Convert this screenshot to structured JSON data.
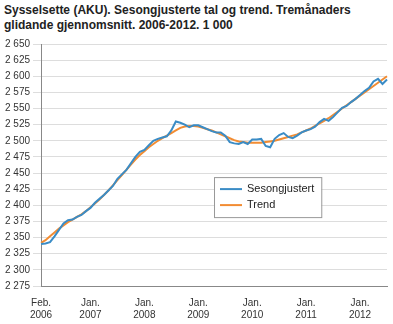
{
  "chart_data": {
    "type": "line",
    "title": "Sysselsette (AKU).  Sesongjusterte tal og trend. Tremånaders glidande gjennomsnitt. 2006-2012. 1 000",
    "categories": [
      "Feb. 2006",
      null,
      null,
      null,
      null,
      null,
      null,
      null,
      null,
      null,
      null,
      "Jan. 2007",
      null,
      null,
      null,
      null,
      null,
      null,
      null,
      null,
      null,
      null,
      null,
      "Jan. 2008",
      null,
      null,
      null,
      null,
      null,
      null,
      null,
      null,
      null,
      null,
      null,
      "Jan. 2009",
      null,
      null,
      null,
      null,
      null,
      null,
      null,
      null,
      null,
      null,
      null,
      "Jan. 2010",
      null,
      null,
      null,
      null,
      null,
      null,
      null,
      null,
      null,
      null,
      null,
      "Jan. 2011",
      null,
      null,
      null,
      null,
      null,
      null,
      null,
      null,
      null,
      null,
      null,
      "Jan. 2012",
      null,
      null,
      null,
      null,
      null,
      null
    ],
    "series": [
      {
        "name": "Sesongjustert",
        "color": "#3a8cc6",
        "values": [
          2340,
          2341,
          2343,
          2352,
          2362,
          2372,
          2377,
          2378,
          2382,
          2385,
          2391,
          2396,
          2404,
          2410,
          2416,
          2423,
          2430,
          2441,
          2448,
          2455,
          2465,
          2475,
          2483,
          2486,
          2493,
          2500,
          2503,
          2505,
          2507,
          2516,
          2530,
          2528,
          2525,
          2521,
          2524,
          2524,
          2521,
          2518,
          2515,
          2513,
          2513,
          2508,
          2498,
          2496,
          2495,
          2498,
          2495,
          2502,
          2502,
          2503,
          2492,
          2490,
          2503,
          2509,
          2512,
          2506,
          2504,
          2508,
          2513,
          2516,
          2518,
          2522,
          2529,
          2534,
          2531,
          2537,
          2544,
          2551,
          2554,
          2560,
          2565,
          2571,
          2577,
          2582,
          2592,
          2596,
          2588,
          2595
        ]
      },
      {
        "name": "Trend",
        "color": "#f28c32",
        "values": [
          2342,
          2346,
          2352,
          2358,
          2364,
          2369,
          2374,
          2378,
          2382,
          2386,
          2391,
          2397,
          2403,
          2409,
          2416,
          2423,
          2431,
          2439,
          2447,
          2455,
          2463,
          2471,
          2478,
          2484,
          2490,
          2495,
          2500,
          2504,
          2508,
          2512,
          2516,
          2520,
          2522,
          2523,
          2523,
          2522,
          2520,
          2518,
          2516,
          2513,
          2510,
          2507,
          2504,
          2501,
          2499,
          2498,
          2497,
          2497,
          2497,
          2497,
          2498,
          2499,
          2500,
          2502,
          2504,
          2506,
          2508,
          2510,
          2513,
          2516,
          2519,
          2523,
          2527,
          2531,
          2535,
          2540,
          2545,
          2550,
          2555,
          2560,
          2565,
          2570,
          2575,
          2580,
          2585,
          2590,
          2595,
          2600
        ]
      }
    ],
    "ylim": [
      2275,
      2650
    ],
    "yticks": [
      {
        "value": 2275,
        "label": "2 275"
      },
      {
        "value": 2300,
        "label": "2 300"
      },
      {
        "value": 2325,
        "label": "2 325"
      },
      {
        "value": 2350,
        "label": "2 350"
      },
      {
        "value": 2375,
        "label": "2 375"
      },
      {
        "value": 2400,
        "label": "2 400"
      },
      {
        "value": 2425,
        "label": "2 425"
      },
      {
        "value": 2450,
        "label": "2 450"
      },
      {
        "value": 2475,
        "label": "2 475"
      },
      {
        "value": 2500,
        "label": "2 500"
      },
      {
        "value": 2525,
        "label": "2 525"
      },
      {
        "value": 2550,
        "label": "2 550"
      },
      {
        "value": 2575,
        "label": "2 575"
      },
      {
        "value": 2600,
        "label": "2 600"
      },
      {
        "value": 2625,
        "label": "2 625"
      },
      {
        "value": 2650,
        "label": "2 650"
      }
    ],
    "grid": true,
    "legend": "center"
  }
}
